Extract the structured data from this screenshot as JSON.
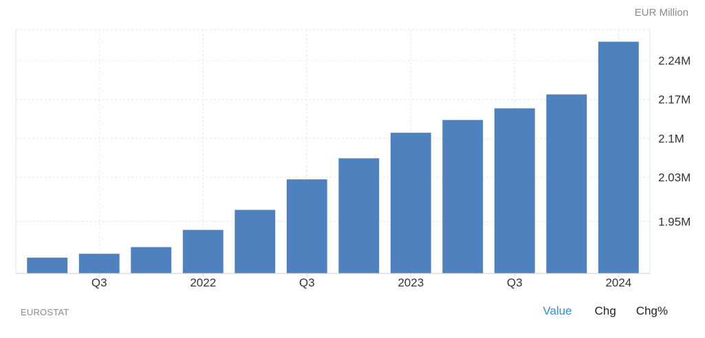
{
  "unit": "EUR Million",
  "source": "EUROSTAT",
  "tabs": [
    {
      "label": "Value",
      "active": true
    },
    {
      "label": "Chg",
      "active": false
    },
    {
      "label": "Chg%",
      "active": false
    }
  ],
  "colors": {
    "bar": "#4e81bd",
    "grid": "#e6e6e6",
    "active_tab": "#2b8fd9"
  },
  "chart_data": {
    "type": "bar",
    "title": "",
    "xlabel": "",
    "ylabel": "EUR Million",
    "grid": true,
    "y_axis_side": "right",
    "ylim": [
      1.8566,
      2.2959
    ],
    "yticks": [
      {
        "value": 1.95,
        "label": "1.95M"
      },
      {
        "value": 2.03,
        "label": "2.03M"
      },
      {
        "value": 2.1,
        "label": "2.1M"
      },
      {
        "value": 2.17,
        "label": "2.17M"
      },
      {
        "value": 2.24,
        "label": "2.24M"
      }
    ],
    "x_tick_labels": [
      {
        "index": 1,
        "label": "Q3"
      },
      {
        "index": 3,
        "label": "2022"
      },
      {
        "index": 5,
        "label": "Q3"
      },
      {
        "index": 7,
        "label": "2023"
      },
      {
        "index": 9,
        "label": "Q3"
      },
      {
        "index": 11,
        "label": "2024"
      }
    ],
    "series": [
      {
        "values": [
          1.885,
          1.892,
          1.904,
          1.935,
          1.971,
          2.026,
          2.064,
          2.11,
          2.133,
          2.154,
          2.179,
          2.274
        ]
      }
    ]
  }
}
